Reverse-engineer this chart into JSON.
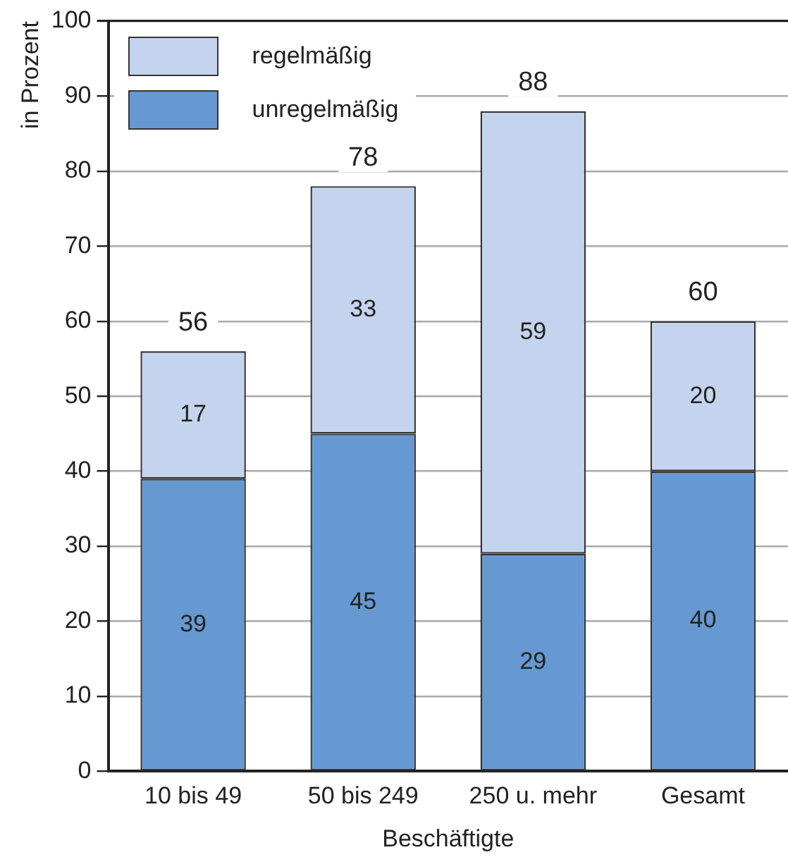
{
  "chart_data": {
    "type": "bar",
    "stacked": true,
    "xlabel": "Beschäftigte",
    "ylabel": "in Prozent",
    "categories": [
      "10 bis 49",
      "50 bis 249",
      "250 u. mehr",
      "Gesamt"
    ],
    "series": [
      {
        "name": "unregelmäßig",
        "color": "#6699d1",
        "values": [
          39,
          45,
          29,
          40
        ]
      },
      {
        "name": "regelmäßig",
        "color": "#c5d4ee",
        "values": [
          17,
          33,
          59,
          20
        ]
      }
    ],
    "ylim": [
      0,
      100
    ],
    "yticks": [
      0,
      10,
      20,
      30,
      40,
      50,
      60,
      70,
      80,
      90,
      100
    ],
    "grid": "y",
    "legend": "top left",
    "data_labels": true,
    "totals": [
      "56",
      "78",
      "88",
      "60"
    ]
  }
}
